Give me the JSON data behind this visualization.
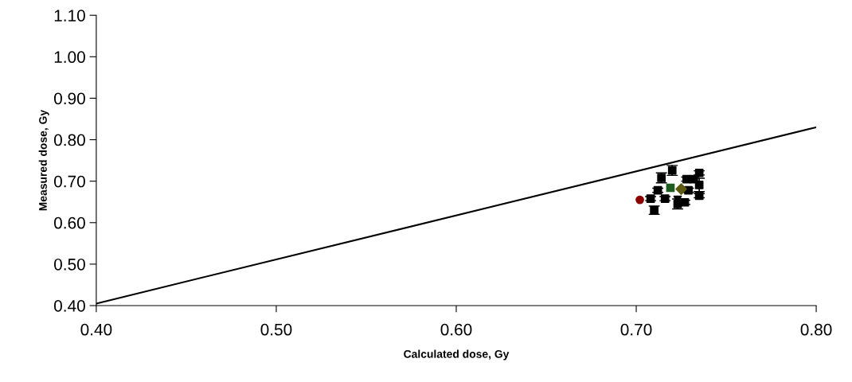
{
  "chart_data": {
    "type": "scatter",
    "xlabel": "Calculated dose, Gy",
    "ylabel": "Measured dose, Gy",
    "xlim": [
      0.4,
      0.8
    ],
    "ylim": [
      0.4,
      1.1
    ],
    "xticks": [
      {
        "value": 0.4,
        "label": "0.40"
      },
      {
        "value": 0.5,
        "label": "0.50"
      },
      {
        "value": 0.6,
        "label": "0.60"
      },
      {
        "value": 0.7,
        "label": "0.70"
      },
      {
        "value": 0.8,
        "label": "0.80"
      }
    ],
    "yticks": [
      {
        "value": 0.4,
        "label": "0.40"
      },
      {
        "value": 0.5,
        "label": "0.50"
      },
      {
        "value": 0.6,
        "label": "0.60"
      },
      {
        "value": 0.7,
        "label": "0.70"
      },
      {
        "value": 0.8,
        "label": "0.80"
      },
      {
        "value": 0.9,
        "label": "0.90"
      },
      {
        "value": 1.0,
        "label": "1.00"
      },
      {
        "value": 1.1,
        "label": "1.10"
      }
    ],
    "grid": false,
    "legend": false,
    "series": [
      {
        "type": "line",
        "color": "#000000",
        "marker": "none",
        "line_style": "solid",
        "x": [
          0.4,
          0.8
        ],
        "values": [
          0.405,
          0.83
        ]
      },
      {
        "color": "#000000",
        "marker": "square",
        "x": [
          0.714,
          0.72,
          0.735,
          0.735,
          0.728,
          0.732,
          0.712,
          0.71,
          0.708,
          0.716,
          0.723,
          0.727,
          0.735,
          0.729
        ],
        "values": [
          0.708,
          0.726,
          0.691,
          0.72,
          0.705,
          0.705,
          0.678,
          0.63,
          0.658,
          0.658,
          0.645,
          0.649,
          0.665,
          0.678
        ],
        "errors": [
          0.012,
          0.012,
          0.016,
          0.005,
          0.005,
          0.005,
          0.005,
          0.01,
          0.005,
          0.005,
          0.012,
          0.005,
          0.005,
          0.005
        ]
      },
      {
        "color": "#000000",
        "marker": "triangle",
        "x": [
          0.723
        ],
        "values": [
          0.655
        ]
      },
      {
        "color": "#8b0000",
        "marker": "circle",
        "x": [
          0.702
        ],
        "values": [
          0.655
        ]
      },
      {
        "color": "#1e5c1e",
        "marker": "square",
        "x": [
          0.719
        ],
        "values": [
          0.684
        ]
      },
      {
        "color": "#5c5a10",
        "marker": "diamond",
        "x": [
          0.725
        ],
        "values": [
          0.681
        ]
      }
    ]
  }
}
